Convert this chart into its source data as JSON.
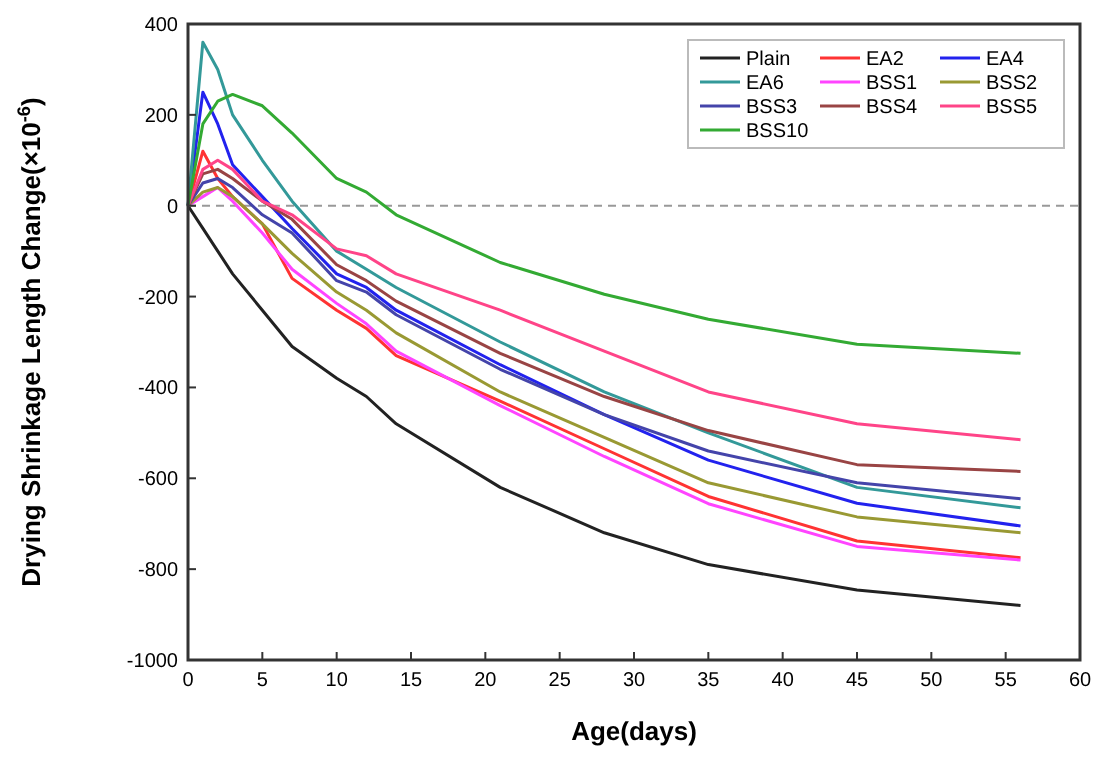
{
  "chart_data": {
    "type": "line",
    "xlabel": "Age(days)",
    "ylabel": "Drying Shrinkage Length Change(×10$^{-6}$)",
    "x": [
      0,
      1,
      2,
      3,
      5,
      7,
      10,
      12,
      14,
      21,
      28,
      35,
      45,
      56
    ],
    "xlim": [
      0,
      60
    ],
    "xticks": [
      0,
      5,
      10,
      15,
      20,
      25,
      30,
      35,
      40,
      45,
      50,
      55,
      60
    ],
    "ylim": [
      -1000,
      400
    ],
    "yticks": [
      -1000,
      -800,
      -600,
      -400,
      -200,
      0,
      200,
      400
    ],
    "grid": false,
    "legend": "top right",
    "marker": "none",
    "line_style": "solid",
    "ref_lines": [
      {
        "axis": "y",
        "value": 0,
        "color": "#999999",
        "line_style": "dashed"
      }
    ],
    "series": [
      {
        "name": "Plain",
        "color": "#222222",
        "values": [
          0,
          -50,
          -100,
          -150,
          -230,
          -310,
          -380,
          -420,
          -480,
          -620,
          -720,
          -790,
          -846,
          -880
        ]
      },
      {
        "name": "EA2",
        "color": "#ff3333",
        "values": [
          0,
          120,
          60,
          20,
          -40,
          -160,
          -230,
          -270,
          -330,
          -430,
          -535,
          -640,
          -738,
          -775
        ]
      },
      {
        "name": "EA4",
        "color": "#2222ee",
        "values": [
          0,
          250,
          180,
          90,
          20,
          -50,
          -150,
          -180,
          -230,
          -350,
          -460,
          -560,
          -655,
          -705
        ]
      },
      {
        "name": "EA6",
        "color": "#339999",
        "values": [
          0,
          360,
          300,
          200,
          100,
          10,
          -100,
          -140,
          -180,
          -300,
          -410,
          -500,
          -620,
          -665
        ]
      },
      {
        "name": "BSS1",
        "color": "#ff44ff",
        "values": [
          0,
          20,
          40,
          10,
          -60,
          -140,
          -215,
          -260,
          -320,
          -440,
          -552,
          -656,
          -750,
          -780
        ]
      },
      {
        "name": "BSS2",
        "color": "#999933",
        "values": [
          0,
          30,
          40,
          20,
          -40,
          -105,
          -190,
          -230,
          -280,
          -410,
          -510,
          -610,
          -685,
          -720
        ]
      },
      {
        "name": "BSS3",
        "color": "#4444aa",
        "values": [
          0,
          50,
          60,
          40,
          -20,
          -60,
          -165,
          -190,
          -240,
          -360,
          -460,
          -540,
          -610,
          -645
        ]
      },
      {
        "name": "BSS4",
        "color": "#994444",
        "values": [
          0,
          70,
          80,
          60,
          10,
          -30,
          -130,
          -165,
          -210,
          -325,
          -420,
          -495,
          -570,
          -585
        ]
      },
      {
        "name": "BSS5",
        "color": "#ff4488",
        "values": [
          0,
          80,
          100,
          80,
          10,
          -20,
          -95,
          -110,
          -150,
          -230,
          -320,
          -410,
          -480,
          -515
        ]
      },
      {
        "name": "BSS10",
        "color": "#33aa33",
        "values": [
          0,
          180,
          230,
          245,
          220,
          160,
          60,
          30,
          -20,
          -125,
          -195,
          -250,
          -305,
          -325
        ]
      }
    ]
  }
}
